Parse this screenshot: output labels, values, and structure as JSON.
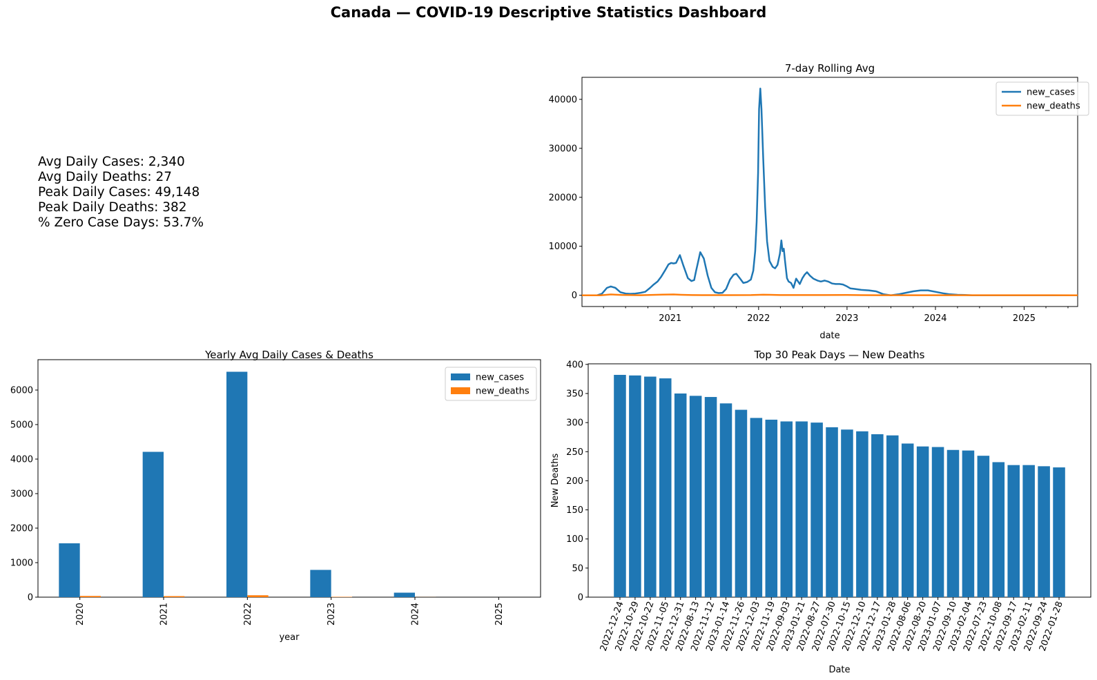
{
  "page": {
    "title": "Canada — COVID-19 Descriptive Statistics Dashboard"
  },
  "stats": [
    "Avg Daily Cases: 2,340",
    "Avg Daily Deaths: 27",
    "Peak Daily Cases: 49,148",
    "Peak Daily Deaths: 382",
    "% Zero Case Days: 53.7%"
  ],
  "colors": {
    "cases": "#1f77b4",
    "deaths": "#ff7f0e"
  },
  "chart_data": [
    {
      "id": "rolling",
      "type": "line",
      "title": "7-day Rolling Avg",
      "xlabel": "date",
      "ylabel": "",
      "xlim": [
        "2020-01-03",
        "2025-08-10"
      ],
      "ylim": [
        -2300,
        44500
      ],
      "yticks": [
        0,
        10000,
        20000,
        30000,
        40000
      ],
      "xtick_labels": [
        "2021",
        "2022",
        "2023",
        "2024",
        "2025"
      ],
      "legend": "top-right",
      "series": [
        {
          "name": "new_cases",
          "x": [
            "2020-01-03",
            "2020-03-05",
            "2020-03-25",
            "2020-04-15",
            "2020-05-01",
            "2020-05-20",
            "2020-06-10",
            "2020-07-01",
            "2020-07-20",
            "2020-08-10",
            "2020-09-01",
            "2020-09-20",
            "2020-10-10",
            "2020-10-25",
            "2020-11-10",
            "2020-11-25",
            "2020-12-10",
            "2020-12-25",
            "2021-01-05",
            "2021-01-15",
            "2021-01-25",
            "2021-02-10",
            "2021-02-25",
            "2021-03-15",
            "2021-03-30",
            "2021-04-10",
            "2021-04-18",
            "2021-04-25",
            "2021-05-05",
            "2021-05-20",
            "2021-06-05",
            "2021-06-20",
            "2021-07-05",
            "2021-07-20",
            "2021-08-05",
            "2021-08-20",
            "2021-09-05",
            "2021-09-20",
            "2021-10-01",
            "2021-10-15",
            "2021-10-30",
            "2021-11-15",
            "2021-11-30",
            "2021-12-10",
            "2021-12-18",
            "2021-12-24",
            "2021-12-30",
            "2022-01-03",
            "2022-01-08",
            "2022-01-13",
            "2022-01-20",
            "2022-01-28",
            "2022-02-05",
            "2022-02-15",
            "2022-02-28",
            "2022-03-10",
            "2022-03-20",
            "2022-03-30",
            "2022-04-05",
            "2022-04-10",
            "2022-04-15",
            "2022-04-20",
            "2022-04-28",
            "2022-05-05",
            "2022-05-15",
            "2022-05-25",
            "2022-06-05",
            "2022-06-20",
            "2022-07-01",
            "2022-07-10",
            "2022-07-20",
            "2022-08-01",
            "2022-08-15",
            "2022-09-01",
            "2022-09-15",
            "2022-10-01",
            "2022-10-15",
            "2022-11-01",
            "2022-11-15",
            "2022-12-01",
            "2022-12-15",
            "2023-01-01",
            "2023-01-15",
            "2023-02-01",
            "2023-03-01",
            "2023-04-01",
            "2023-05-01",
            "2023-06-01",
            "2023-07-01",
            "2023-08-01",
            "2023-09-01",
            "2023-10-01",
            "2023-11-01",
            "2023-12-01",
            "2024-01-01",
            "2024-02-01",
            "2024-03-01",
            "2024-04-01",
            "2024-05-01",
            "2024-06-01",
            "2024-07-01",
            "2025-08-10"
          ],
          "y": [
            0,
            0,
            300,
            1500,
            1800,
            1500,
            600,
            350,
            300,
            350,
            500,
            700,
            1500,
            2200,
            2800,
            3800,
            5000,
            6300,
            6600,
            6500,
            6600,
            8200,
            6000,
            3500,
            2900,
            3100,
            5000,
            6500,
            8800,
            7500,
            4000,
            1500,
            600,
            450,
            500,
            1300,
            3200,
            4200,
            4400,
            3500,
            2500,
            2700,
            3200,
            5000,
            9000,
            15000,
            25000,
            38000,
            42200,
            38000,
            28000,
            18000,
            11000,
            7000,
            5800,
            5500,
            6200,
            8500,
            11200,
            9000,
            9500,
            7000,
            3500,
            2800,
            2500,
            1500,
            3400,
            2300,
            3500,
            4200,
            4700,
            4000,
            3400,
            3000,
            2800,
            3000,
            2800,
            2400,
            2300,
            2300,
            2200,
            1800,
            1400,
            1300,
            1100,
            1000,
            800,
            200,
            0,
            200,
            500,
            800,
            1000,
            1000,
            700,
            400,
            200,
            100,
            50,
            0,
            0,
            0
          ],
          "color": "#1f77b4"
        },
        {
          "name": "new_deaths",
          "x": [
            "2020-01-03",
            "2020-03-20",
            "2020-05-01",
            "2020-06-15",
            "2020-09-01",
            "2020-12-01",
            "2021-01-15",
            "2021-02-15",
            "2021-04-01",
            "2021-06-01",
            "2021-09-01",
            "2021-12-01",
            "2022-01-20",
            "2022-02-15",
            "2022-04-01",
            "2022-07-01",
            "2022-10-01",
            "2023-01-01",
            "2023-03-01",
            "2023-06-01",
            "2024-01-01",
            "2025-08-10"
          ],
          "y": [
            0,
            0,
            170,
            60,
            10,
            120,
            170,
            100,
            40,
            20,
            30,
            40,
            110,
            90,
            45,
            40,
            45,
            50,
            30,
            10,
            5,
            0
          ],
          "color": "#ff7f0e"
        }
      ]
    },
    {
      "id": "yearly",
      "type": "bar",
      "title": "Yearly Avg Daily Cases & Deaths",
      "xlabel": "year",
      "ylabel": "",
      "categories": [
        "2020",
        "2021",
        "2022",
        "2023",
        "2024",
        "2025"
      ],
      "ylim": [
        0,
        6880
      ],
      "yticks": [
        0,
        1000,
        2000,
        3000,
        4000,
        5000,
        6000
      ],
      "legend": "top-right",
      "series": [
        {
          "name": "new_cases",
          "values": [
            1560,
            4210,
            6530,
            790,
            130,
            0
          ],
          "color": "#1f77b4"
        },
        {
          "name": "new_deaths",
          "values": [
            35,
            30,
            55,
            10,
            2,
            0
          ],
          "color": "#ff7f0e"
        }
      ]
    },
    {
      "id": "peaks",
      "type": "bar",
      "title": "Top 30 Peak Days — New Deaths",
      "xlabel": "Date",
      "ylabel": "New Deaths",
      "ylim": [
        0,
        401
      ],
      "yticks": [
        0,
        50,
        100,
        150,
        200,
        250,
        300,
        350,
        400
      ],
      "categories": [
        "2022-12-24",
        "2022-10-29",
        "2022-10-22",
        "2022-11-05",
        "2022-12-31",
        "2022-08-13",
        "2022-11-12",
        "2023-01-14",
        "2022-11-26",
        "2022-12-03",
        "2022-11-19",
        "2022-09-03",
        "2023-01-21",
        "2022-08-27",
        "2022-07-30",
        "2022-10-15",
        "2022-12-10",
        "2022-12-17",
        "2023-01-28",
        "2022-08-06",
        "2022-08-20",
        "2023-01-07",
        "2022-09-10",
        "2023-02-04",
        "2022-07-23",
        "2022-10-08",
        "2022-09-17",
        "2023-02-11",
        "2022-09-24",
        "2022-01-28"
      ],
      "values": [
        382,
        381,
        379,
        376,
        350,
        346,
        344,
        333,
        322,
        308,
        305,
        302,
        302,
        300,
        292,
        288,
        285,
        280,
        278,
        264,
        259,
        258,
        253,
        252,
        243,
        232,
        227,
        227,
        225,
        223
      ],
      "color": "#1f77b4"
    }
  ]
}
